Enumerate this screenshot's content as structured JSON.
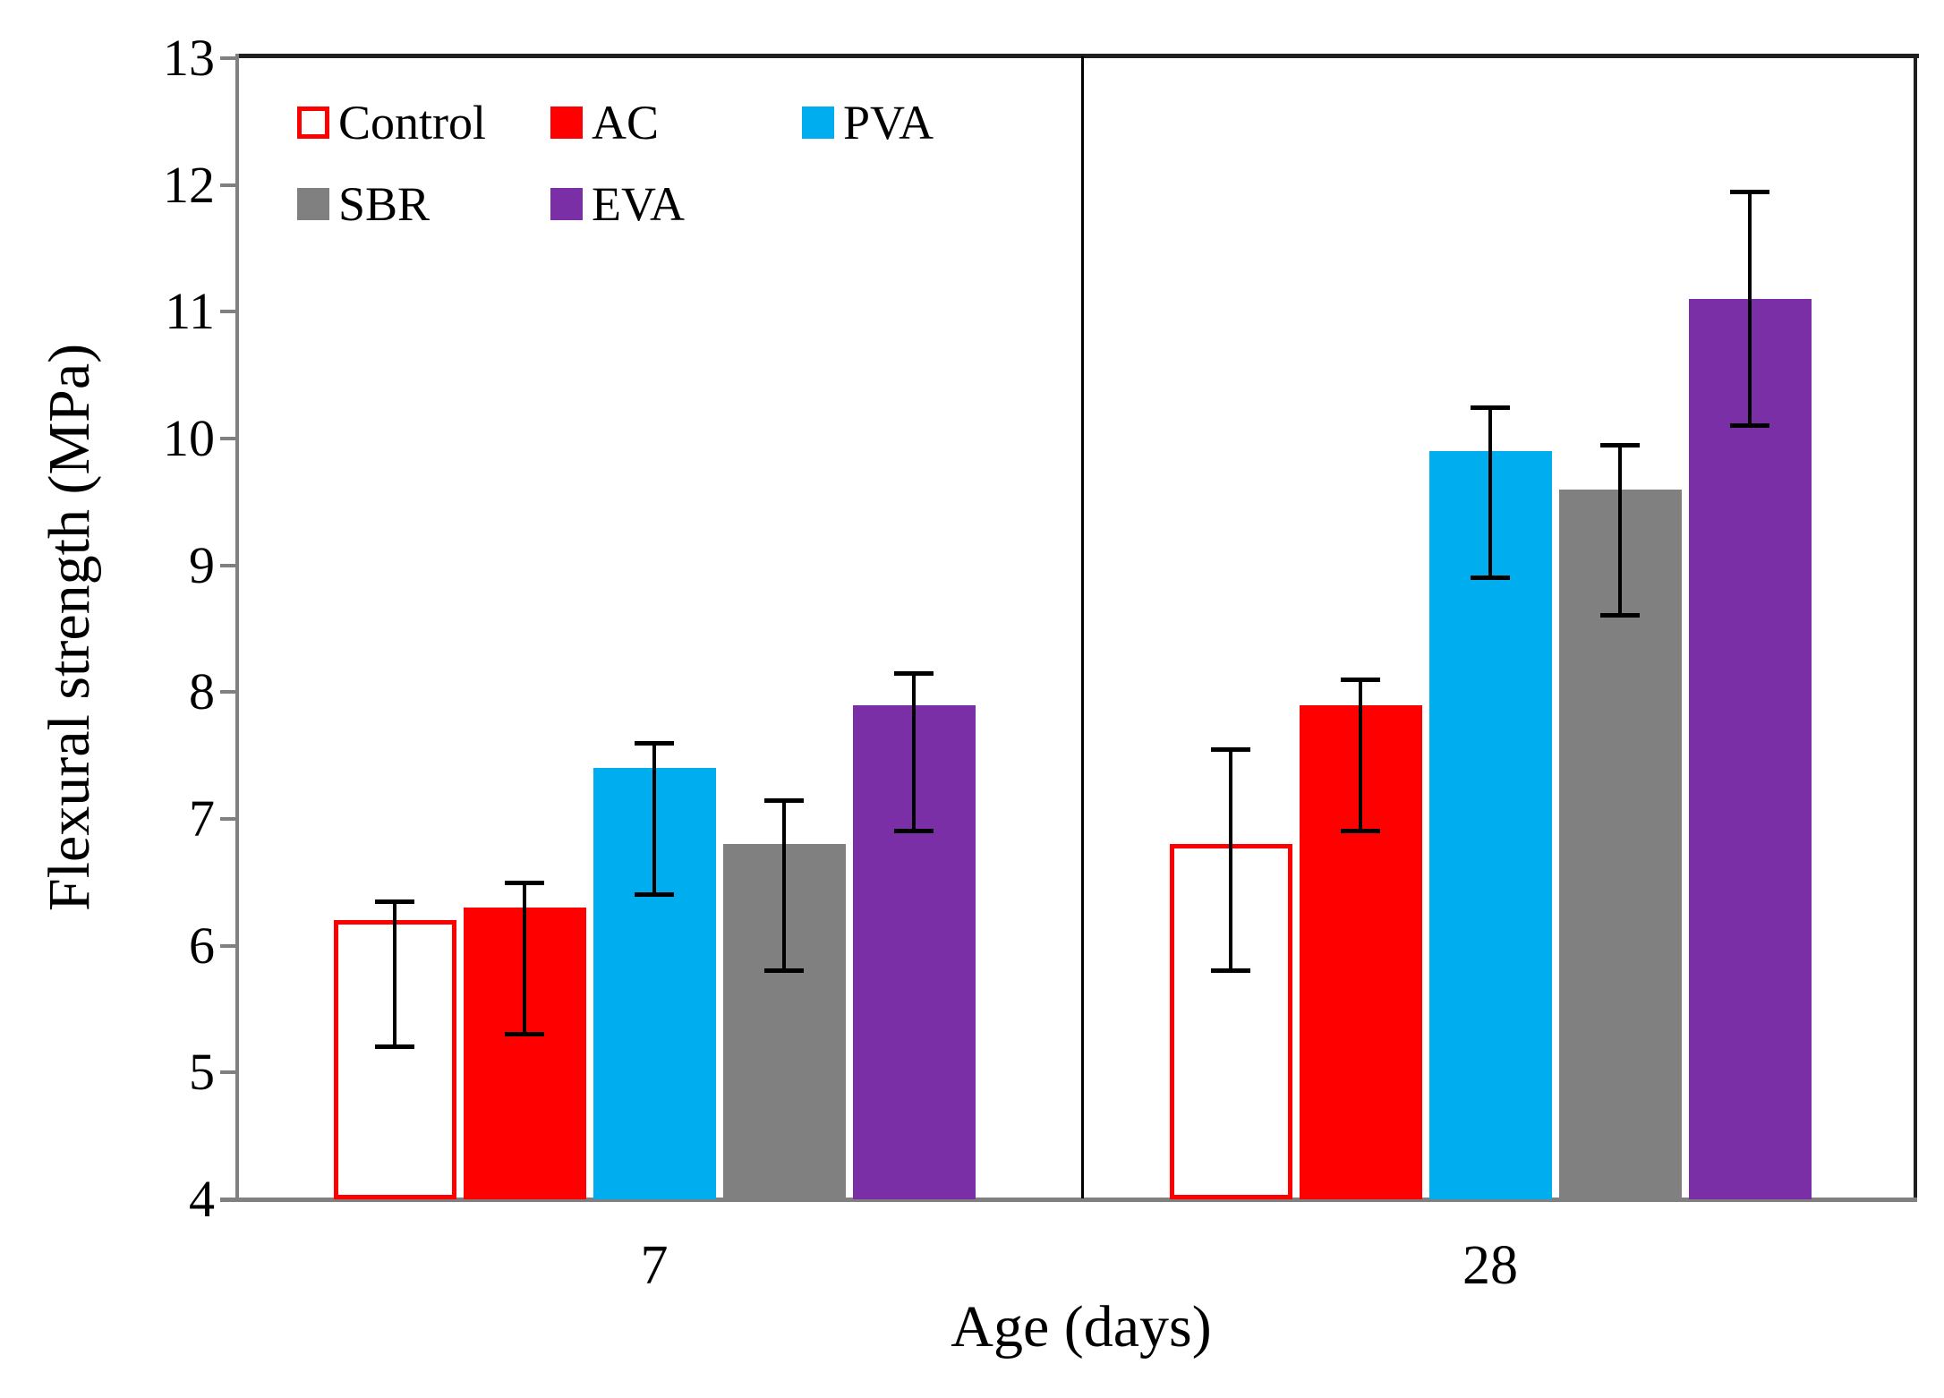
{
  "chart_data": {
    "type": "bar",
    "title": "",
    "xlabel": "Age (days)",
    "ylabel": "Flexural strength (MPa)",
    "categories": [
      "7",
      "28"
    ],
    "ylim": [
      4,
      13
    ],
    "yticks": [
      4,
      5,
      6,
      7,
      8,
      9,
      10,
      11,
      12,
      13
    ],
    "grid": false,
    "legend_position": "top-left-inside",
    "error_bar_note": "whisker_low / whisker_high are absolute whisker endpoints in MPa",
    "series": [
      {
        "name": "Control",
        "fill": "#FFFFFF",
        "outline": "#FF0000",
        "values": [
          6.2,
          6.8
        ],
        "whisker_low": [
          5.2,
          5.8
        ],
        "whisker_high": [
          6.35,
          7.55
        ]
      },
      {
        "name": "AC",
        "fill": "#FF0000",
        "outline": "#FF0000",
        "values": [
          6.3,
          7.9
        ],
        "whisker_low": [
          5.3,
          6.9
        ],
        "whisker_high": [
          6.5,
          8.1
        ]
      },
      {
        "name": "PVA",
        "fill": "#00AEEF",
        "outline": "#00AEEF",
        "values": [
          7.4,
          9.9
        ],
        "whisker_low": [
          6.4,
          8.9
        ],
        "whisker_high": [
          7.6,
          10.25
        ]
      },
      {
        "name": "SBR",
        "fill": "#808080",
        "outline": "#808080",
        "values": [
          6.8,
          9.6
        ],
        "whisker_low": [
          5.8,
          8.6
        ],
        "whisker_high": [
          7.15,
          9.95
        ]
      },
      {
        "name": "EVA",
        "fill": "#7B2FA6",
        "outline": "#7B2FA6",
        "values": [
          7.9,
          11.1
        ],
        "whisker_low": [
          6.9,
          10.1
        ],
        "whisker_high": [
          8.15,
          11.95
        ]
      }
    ],
    "legend_rows": [
      [
        "Control",
        "AC",
        "PVA"
      ],
      [
        "SBR",
        "EVA"
      ]
    ]
  },
  "colors": {
    "error_bar": "#000000",
    "axis_gray": "#808080",
    "frame_dark": "#1f1f1f",
    "text": "#000000",
    "background": "#FFFFFF"
  }
}
